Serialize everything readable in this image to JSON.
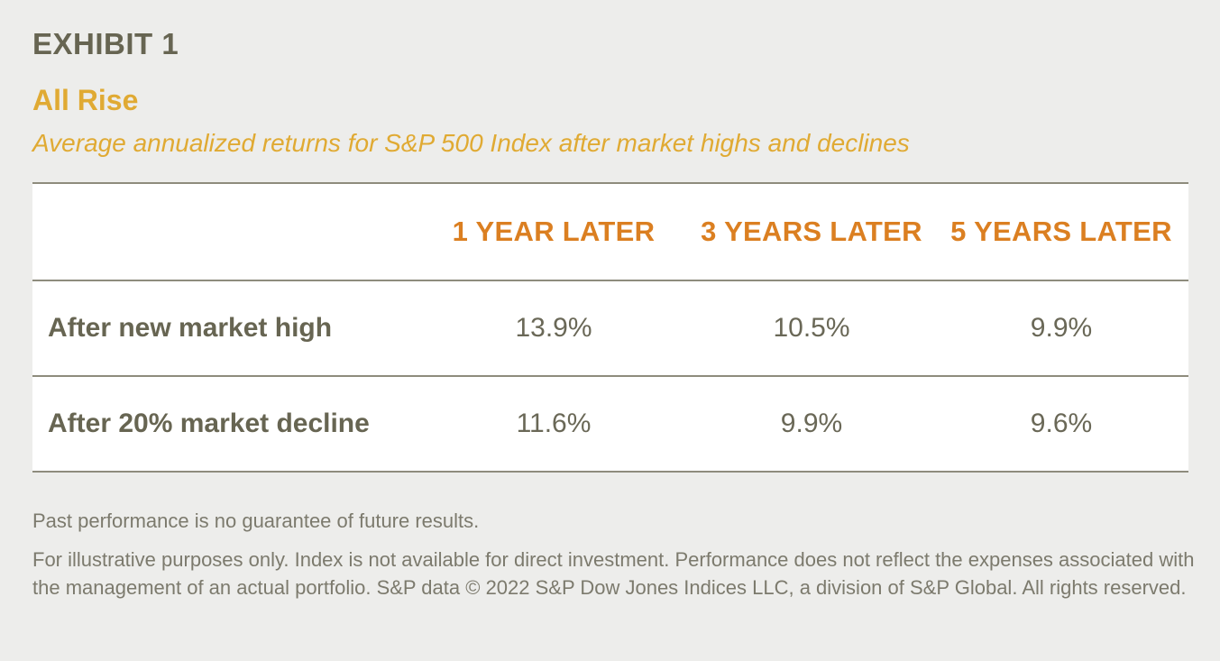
{
  "header": {
    "exhibit": "EXHIBIT 1",
    "title": "All Rise",
    "subtitle": "Average annualized returns for S&P 500 Index after market highs and declines"
  },
  "chart_data": {
    "type": "table",
    "title": "All Rise",
    "subtitle": "Average annualized returns for S&P 500 Index after market highs and declines",
    "columns": [
      "1 YEAR LATER",
      "3 YEARS LATER",
      "5 YEARS LATER"
    ],
    "rows": [
      {
        "label": "After new market high",
        "values": [
          "13.9%",
          "10.5%",
          "9.9%"
        ]
      },
      {
        "label": "After 20% market decline",
        "values": [
          "11.6%",
          "9.9%",
          "9.6%"
        ]
      }
    ]
  },
  "footnotes": {
    "performance": "Past performance is no guarantee of future results.",
    "disclaimer": "For illustrative purposes only. Index is not available for direct investment. Performance does not reflect the expenses associated with the management of an actual portfolio. S&P data © 2022 S&P Dow Jones Indices LLC, a division of S&P Global. All rights reserved."
  },
  "colors": {
    "background": "#ededeb",
    "heading": "#676552",
    "title_accent": "#e0aa33",
    "column_header": "#db7f21",
    "rule": "#8e8c7d"
  }
}
